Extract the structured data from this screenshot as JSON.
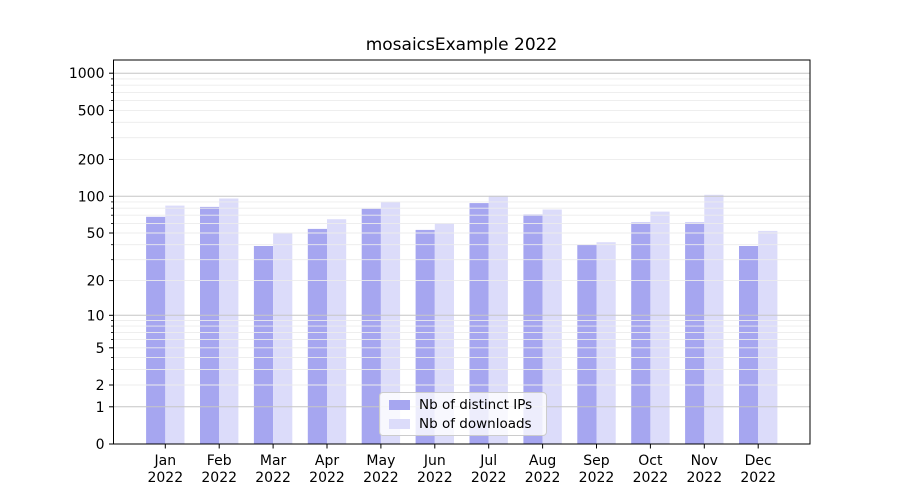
{
  "chart_data": {
    "type": "bar",
    "title": "mosaicsExample 2022",
    "categories": [
      "Jan",
      "Feb",
      "Mar",
      "Apr",
      "May",
      "Jun",
      "Jul",
      "Aug",
      "Sep",
      "Oct",
      "Nov",
      "Dec"
    ],
    "x_tick_year": "2022",
    "series": [
      {
        "name": "Nb of distinct IPs",
        "color": "#a6a6f0",
        "values": [
          68,
          82,
          39,
          54,
          79,
          53,
          88,
          71,
          40,
          61,
          61,
          39
        ]
      },
      {
        "name": "Nb of downloads",
        "color": "#dcdcfa",
        "values": [
          84,
          96,
          50,
          65,
          90,
          60,
          101,
          78,
          42,
          75,
          103,
          52
        ]
      }
    ],
    "y_scale": "log1p",
    "ylim": [
      0,
      1280
    ],
    "y_ticks": [
      0,
      1,
      2,
      5,
      10,
      20,
      50,
      100,
      200,
      500,
      1000
    ],
    "grid_major": [
      1,
      10,
      100,
      1000
    ],
    "grid_minor": [
      2,
      3,
      4,
      5,
      6,
      7,
      8,
      9,
      20,
      30,
      40,
      50,
      60,
      70,
      80,
      90,
      200,
      300,
      400,
      500,
      600,
      700,
      800,
      900
    ],
    "colors": {
      "grid_major": "#c6c6c6",
      "grid_minor": "#ececec",
      "axis": "#000000",
      "background": "#ffffff"
    },
    "legend": {
      "position": "lower center",
      "labels": [
        "Nb of distinct IPs",
        "Nb of downloads"
      ]
    }
  }
}
